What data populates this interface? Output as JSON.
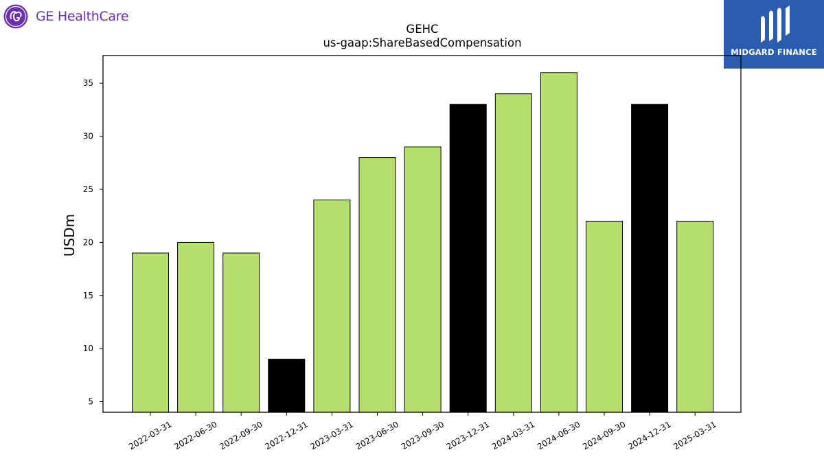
{
  "logos": {
    "left_company": "GE HealthCare",
    "right_company": "MIDGARD FINANCE",
    "left_brand_color": "#6b2fb3",
    "right_brand_color": "#2a5db0"
  },
  "chart_data": {
    "type": "bar",
    "title": "GEHC",
    "subtitle": "us-gaap:ShareBasedCompensation",
    "xlabel": "",
    "ylabel": "USDm",
    "categories": [
      "2022-03-31",
      "2022-06-30",
      "2022-09-30",
      "2022-12-31",
      "2023-03-31",
      "2023-06-30",
      "2023-09-30",
      "2023-12-31",
      "2024-03-31",
      "2024-06-30",
      "2024-09-30",
      "2024-12-31",
      "2025-03-31"
    ],
    "values": [
      19,
      20,
      19,
      9,
      24,
      28,
      29,
      33,
      34,
      36,
      22,
      33,
      22
    ],
    "bar_colors": [
      "#b5df6d",
      "#b5df6d",
      "#b5df6d",
      "#000000",
      "#b5df6d",
      "#b5df6d",
      "#b5df6d",
      "#000000",
      "#b5df6d",
      "#b5df6d",
      "#b5df6d",
      "#000000",
      "#b5df6d"
    ],
    "ylim": [
      4,
      37.6
    ],
    "yticks": [
      5,
      10,
      15,
      20,
      25,
      30,
      35
    ],
    "grid": false,
    "legend": "none"
  }
}
